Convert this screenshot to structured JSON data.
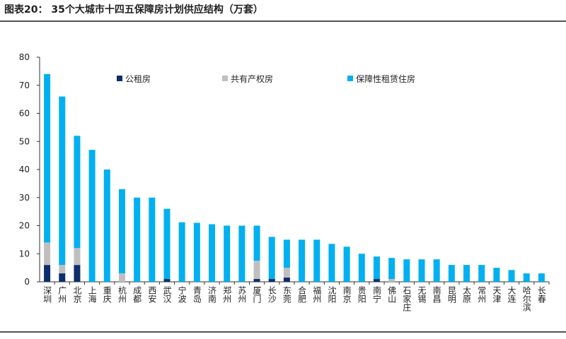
{
  "chart_data": {
    "type": "stacked-bar",
    "title": "图表20：  35个大城市十四五保障房计划供应结构（万套）",
    "categories": [
      "深圳",
      "广州",
      "北京",
      "上海",
      "重庆",
      "杭州",
      "成都",
      "西安",
      "武汉",
      "宁波",
      "青岛",
      "济南",
      "郑州",
      "苏州",
      "厦门",
      "长沙",
      "东莞",
      "合肥",
      "福州",
      "沈阳",
      "南京",
      "贵阳",
      "南宁",
      "佛山",
      "石家庄",
      "无锡",
      "南昌",
      "昆明",
      "太原",
      "常州",
      "天津",
      "大连",
      "哈尔滨",
      "长春"
    ],
    "series": [
      {
        "name": "公租房",
        "color": "#0e2d6b",
        "values": [
          6,
          3,
          6,
          0,
          0,
          0,
          0,
          0,
          1,
          0,
          0,
          0,
          0,
          0,
          1,
          1,
          1.5,
          0,
          0,
          0,
          0,
          0,
          1,
          0,
          0,
          0,
          0,
          0,
          0,
          0,
          0,
          0,
          0,
          0
        ]
      },
      {
        "name": "共有产权房",
        "color": "#bfbfbf",
        "values": [
          8,
          3,
          6,
          0,
          0,
          3,
          0,
          0,
          0,
          0,
          0,
          0,
          0,
          0,
          6.5,
          0,
          3.5,
          0,
          0,
          0,
          0,
          0,
          0,
          1,
          0,
          0,
          0,
          0,
          0,
          0,
          0,
          0,
          0,
          0
        ]
      },
      {
        "name": "保障性租赁住房",
        "color": "#00b0f0",
        "values": [
          60,
          60,
          40,
          47,
          40,
          30,
          30,
          30,
          25,
          21.2,
          21,
          20.5,
          20,
          20,
          12.5,
          15,
          10,
          15,
          15,
          13.5,
          12.5,
          10,
          8,
          7.5,
          8,
          8,
          8,
          6,
          6,
          6,
          5,
          4.2,
          3,
          3
        ]
      }
    ],
    "ylim": [
      0,
      80
    ],
    "yticks": [
      0,
      10,
      20,
      30,
      40,
      50,
      60,
      70,
      80
    ]
  }
}
